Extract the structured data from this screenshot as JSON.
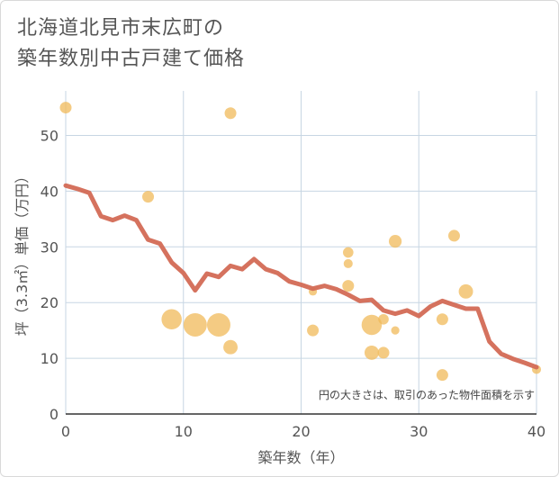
{
  "title_line1": "北海道北見市末広町の",
  "title_line2": "築年数別中古戸建て価格",
  "chart_data": {
    "type": "scatter",
    "xlabel": "築年数（年）",
    "ylabel": "坪（3.3㎡）単価（万円）",
    "xlim": [
      0,
      40
    ],
    "ylim": [
      0,
      58
    ],
    "xticks": [
      0,
      10,
      20,
      30,
      40
    ],
    "yticks": [
      0,
      10,
      20,
      30,
      40,
      50
    ],
    "grid": true,
    "note": "円の大きさは、取引のあった物件面積を示す",
    "colors": {
      "bubble": "#f0b95a",
      "line": "#d36a55",
      "grid": "#c7d6e3"
    },
    "bubbles": [
      {
        "x": 0,
        "y": 55,
        "size": 1
      },
      {
        "x": 14,
        "y": 54,
        "size": 1
      },
      {
        "x": 7,
        "y": 39,
        "size": 1
      },
      {
        "x": 9,
        "y": 17,
        "size": 3
      },
      {
        "x": 11,
        "y": 16,
        "size": 4
      },
      {
        "x": 13,
        "y": 16,
        "size": 4
      },
      {
        "x": 14,
        "y": 12,
        "size": 1.5
      },
      {
        "x": 21,
        "y": 22,
        "size": 0.5
      },
      {
        "x": 21,
        "y": 15,
        "size": 1
      },
      {
        "x": 24,
        "y": 29,
        "size": 0.8
      },
      {
        "x": 24,
        "y": 27,
        "size": 0.6
      },
      {
        "x": 24,
        "y": 23,
        "size": 1
      },
      {
        "x": 26,
        "y": 16,
        "size": 3
      },
      {
        "x": 26,
        "y": 11,
        "size": 1.5
      },
      {
        "x": 27,
        "y": 17,
        "size": 0.8
      },
      {
        "x": 27,
        "y": 11,
        "size": 1
      },
      {
        "x": 28,
        "y": 31,
        "size": 1.2
      },
      {
        "x": 28,
        "y": 15,
        "size": 0.5
      },
      {
        "x": 32,
        "y": 17,
        "size": 1
      },
      {
        "x": 32,
        "y": 7,
        "size": 1
      },
      {
        "x": 33,
        "y": 32,
        "size": 1
      },
      {
        "x": 34,
        "y": 22,
        "size": 1.5
      },
      {
        "x": 40,
        "y": 8,
        "size": 0.6
      }
    ],
    "trend": {
      "x": [
        0,
        1,
        2,
        3,
        4,
        5,
        6,
        7,
        8,
        9,
        10,
        11,
        12,
        13,
        14,
        15,
        16,
        17,
        18,
        19,
        20,
        21,
        22,
        23,
        24,
        25,
        26,
        27,
        28,
        29,
        30,
        31,
        32,
        33,
        34,
        35,
        36,
        37,
        38,
        39,
        40
      ],
      "y": [
        41,
        40.4,
        39.7,
        35.5,
        34.8,
        35.6,
        34.8,
        31.3,
        30.6,
        27.2,
        25.3,
        22.2,
        25.2,
        24.6,
        26.6,
        26,
        27.8,
        26,
        25.3,
        23.8,
        23.2,
        22.5,
        23,
        22.4,
        21.4,
        20.3,
        20.5,
        18.6,
        18,
        18.6,
        17.6,
        19.3,
        20.3,
        19.6,
        18.9,
        18.9,
        13,
        10.8,
        9.9,
        9.2,
        8.4
      ]
    }
  }
}
